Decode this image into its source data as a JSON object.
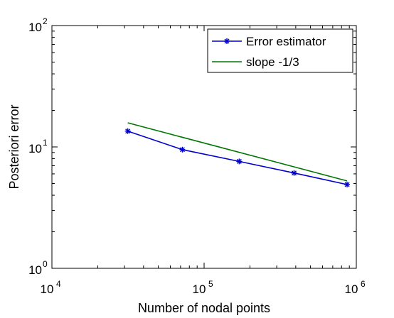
{
  "chart_data": {
    "type": "line",
    "xscale": "log",
    "yscale": "log",
    "xlabel": "Number of nodal points",
    "ylabel": "Posteriori error",
    "xlim": [
      10000,
      1000000
    ],
    "ylim": [
      1,
      100
    ],
    "xticks": [
      {
        "value": 10000,
        "base": "10",
        "exp": "4"
      },
      {
        "value": 100000,
        "base": "10",
        "exp": "5"
      },
      {
        "value": 1000000,
        "base": "10",
        "exp": "6"
      }
    ],
    "yticks": [
      {
        "value": 1,
        "base": "10",
        "exp": "0"
      },
      {
        "value": 10,
        "base": "10",
        "exp": "1"
      },
      {
        "value": 100,
        "base": "10",
        "exp": "2"
      }
    ],
    "grid": false,
    "legend": "top-right",
    "series": [
      {
        "name": "Error estimator",
        "color": "#0000cc",
        "marker": "plus-star",
        "x": [
          31500,
          72000,
          170000,
          390000,
          870000
        ],
        "y": [
          13.5,
          9.5,
          7.6,
          6.1,
          4.9
        ]
      },
      {
        "name": "slope -1/3",
        "color": "#007700",
        "marker": "none",
        "x": [
          31500,
          870000
        ],
        "y": [
          15.8,
          5.25
        ]
      }
    ]
  }
}
